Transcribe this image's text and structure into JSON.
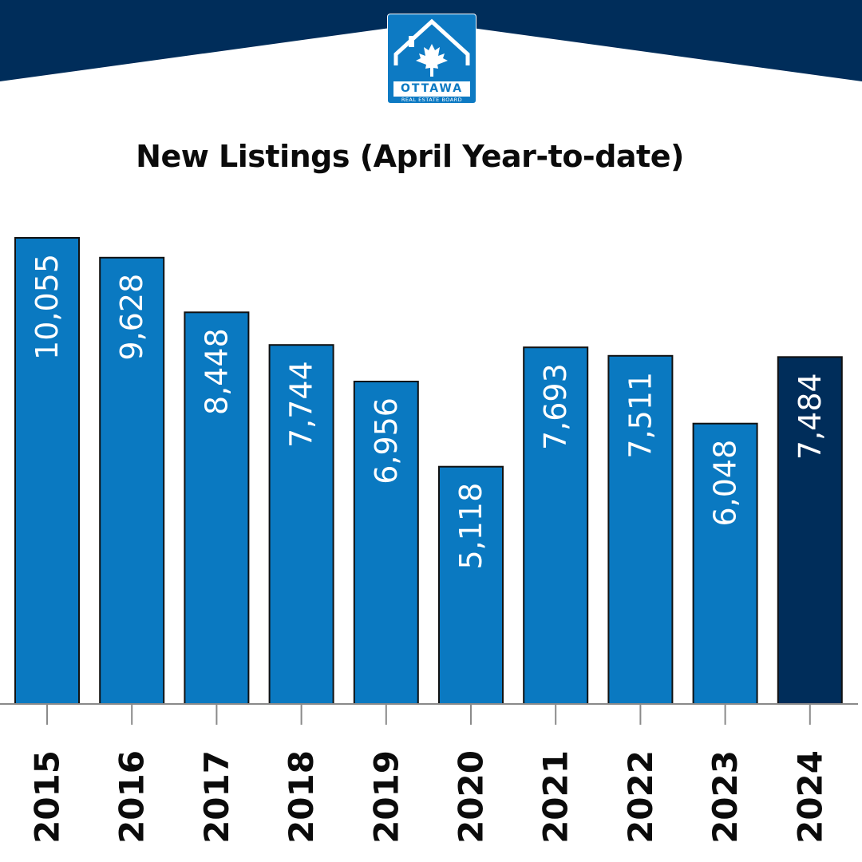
{
  "brand": {
    "wordmark": "OTTAWA",
    "subtitle": "REAL ESTATE BOARD",
    "logo_icon": "house-maple-leaf-icon",
    "colors": {
      "navy": "#002d5a",
      "blue": "#0a79c1",
      "highlight": "#002d5a"
    }
  },
  "chart_data": {
    "type": "bar",
    "title": "New Listings (April Year-to-date)",
    "xlabel": "",
    "ylabel": "",
    "categories": [
      "2015",
      "2016",
      "2017",
      "2018",
      "2019",
      "2020",
      "2021",
      "2022",
      "2023",
      "2024"
    ],
    "values": [
      10055,
      9628,
      8448,
      7744,
      6956,
      5118,
      7693,
      7511,
      6048,
      7484
    ],
    "value_labels": [
      "10,055",
      "9,628",
      "8,448",
      "7,744",
      "6,956",
      "5,118",
      "7,693",
      "7,511",
      "6,048",
      "7,484"
    ],
    "highlighted_category": "2024",
    "ylim": [
      0,
      10055
    ],
    "grid": false,
    "legend": "none"
  }
}
